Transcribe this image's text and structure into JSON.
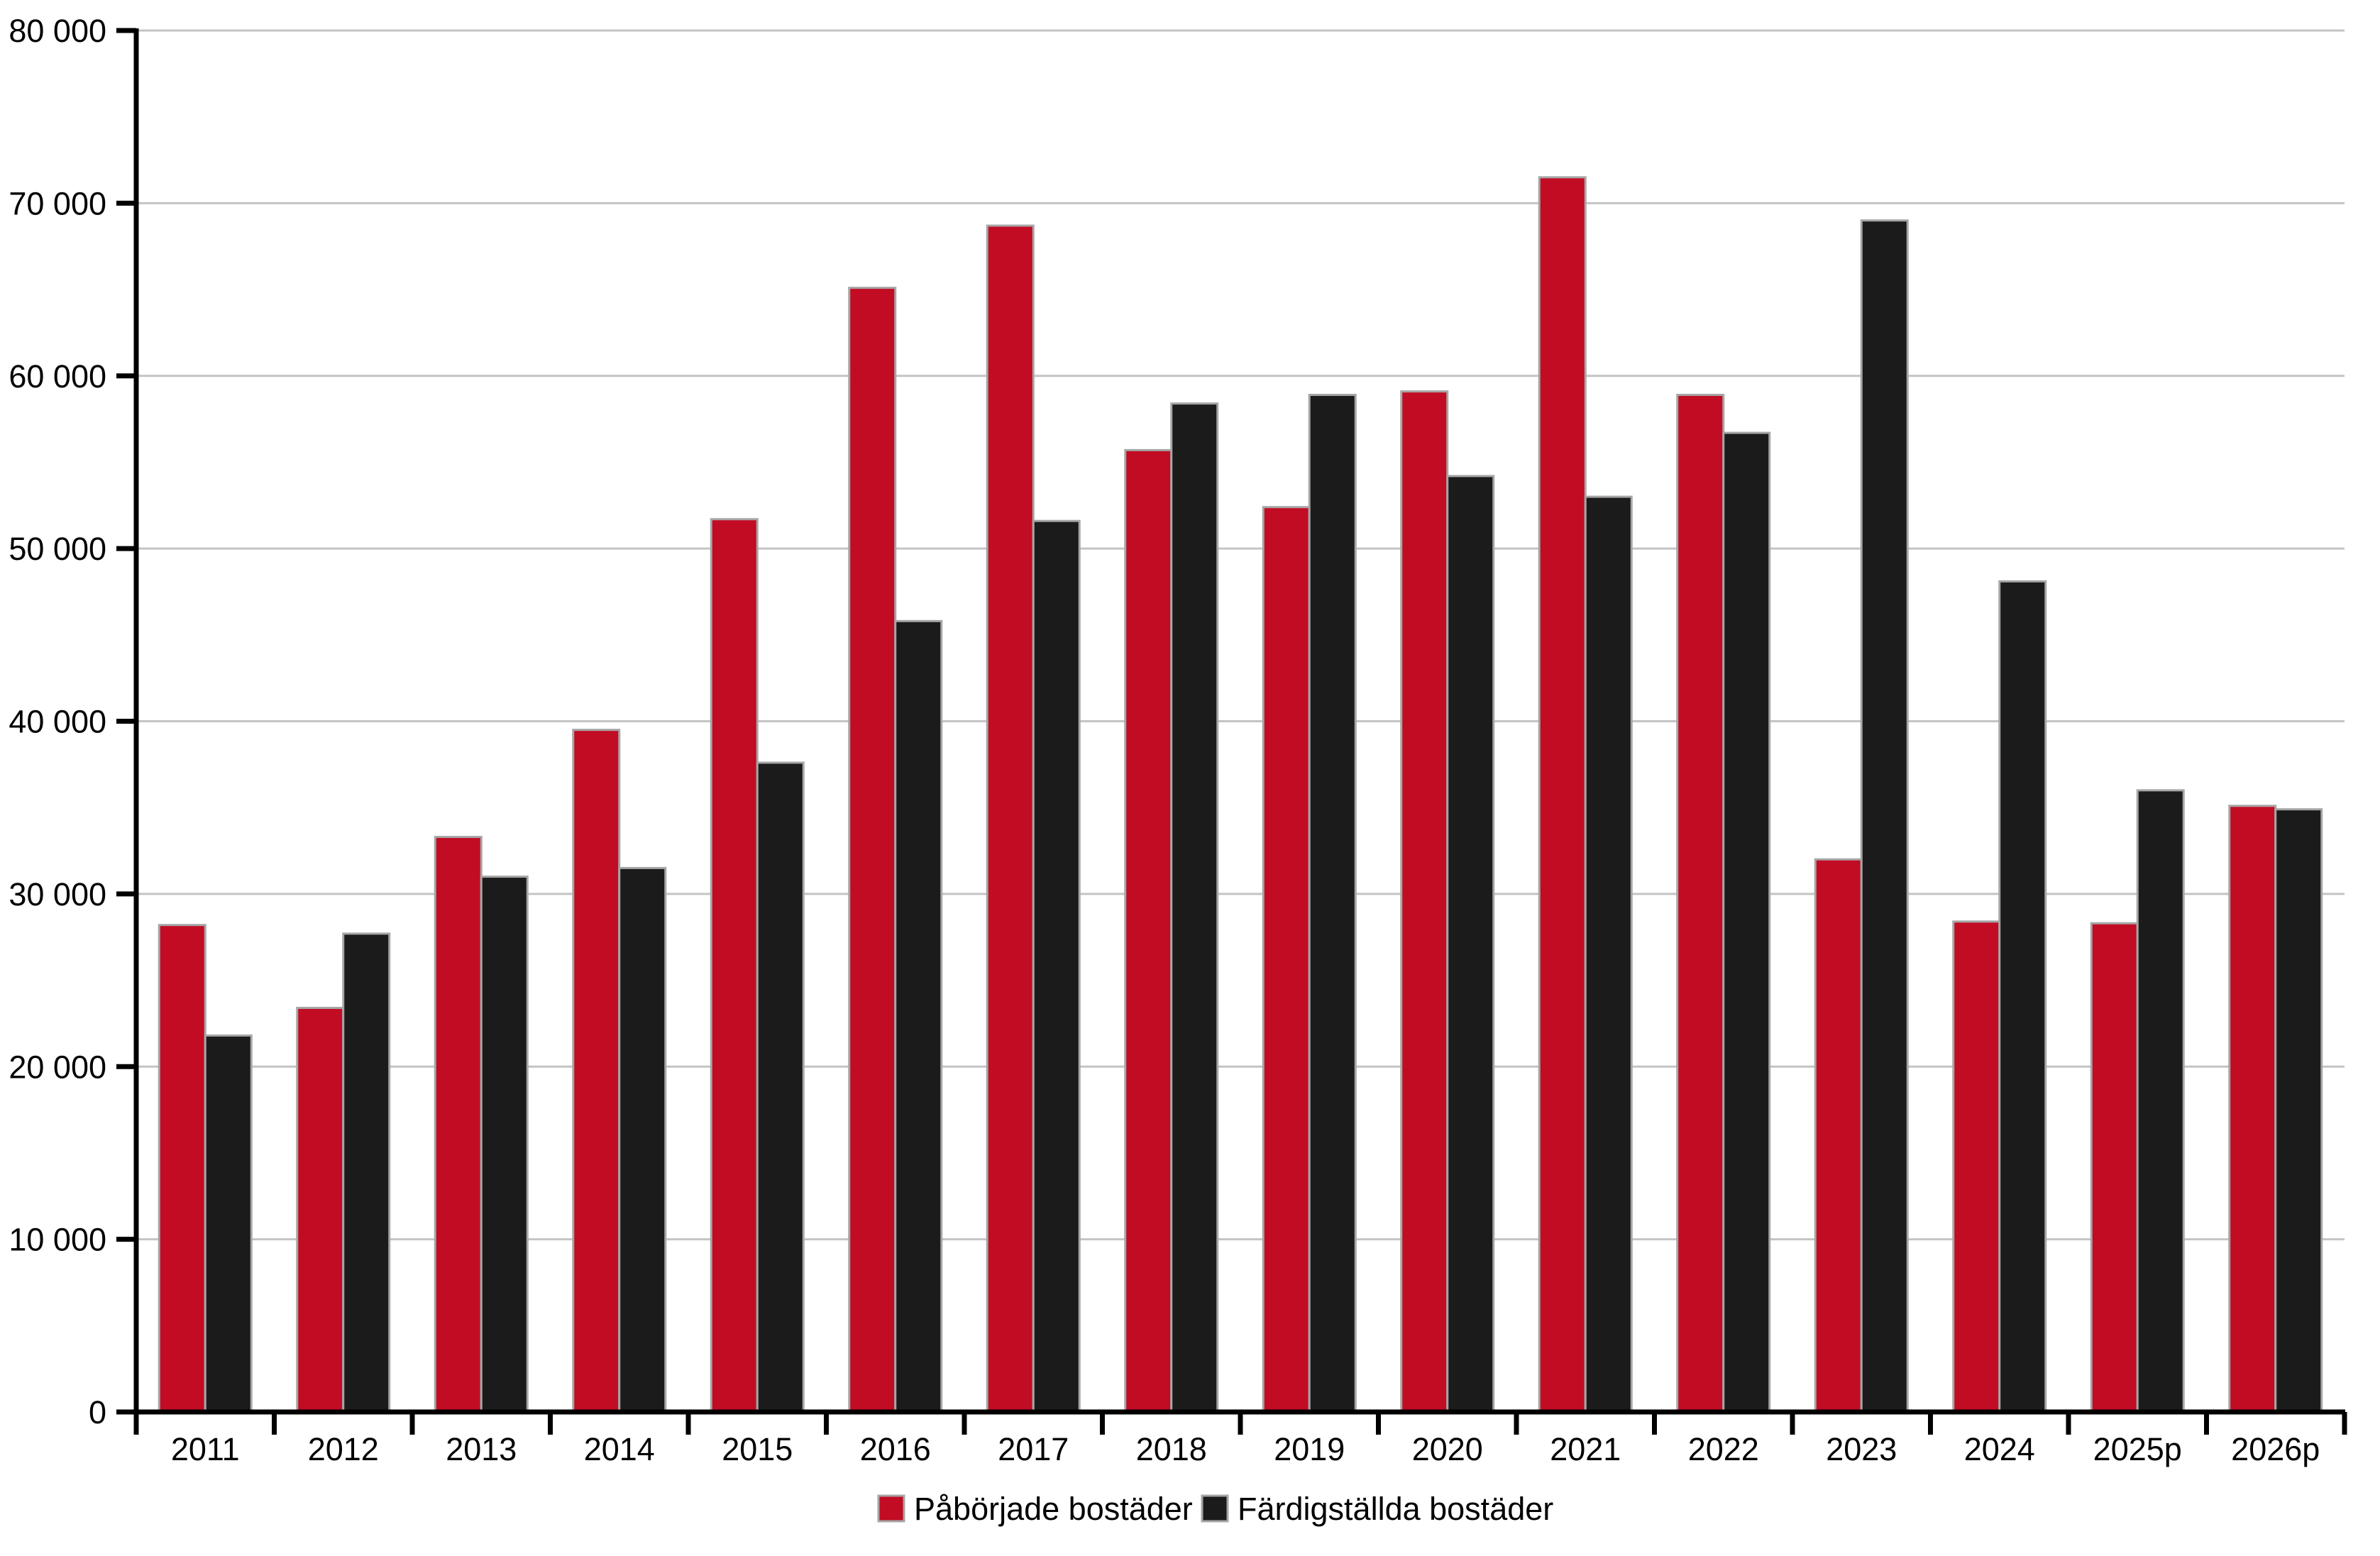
{
  "chart_data": {
    "type": "bar",
    "title": "",
    "categories": [
      "2011",
      "2012",
      "2013",
      "2014",
      "2015",
      "2016",
      "2017",
      "2018",
      "2019",
      "2020",
      "2021",
      "2022",
      "2023",
      "2024",
      "2025p",
      "2026p"
    ],
    "series": [
      {
        "key": "paborjade",
        "name": "Påbörjade bostäder",
        "color": "#C20C24",
        "values": [
          28200,
          23400,
          33300,
          39500,
          51700,
          65100,
          68700,
          55700,
          52400,
          59100,
          71500,
          58900,
          32000,
          28400,
          28300,
          35100
        ]
      },
      {
        "key": "fardigstallda",
        "name": "Färdigställda bostäder",
        "color": "#1B1B1B",
        "values": [
          21800,
          27700,
          31000,
          31500,
          37600,
          45800,
          51600,
          58400,
          58900,
          54200,
          53000,
          56700,
          69000,
          48100,
          36000,
          34900
        ]
      }
    ],
    "ylim": [
      0,
      80000
    ],
    "ytick_step": 10000,
    "ytick_values": [
      0,
      10000,
      20000,
      30000,
      40000,
      50000,
      60000,
      70000,
      80000
    ],
    "ytick_labels": [
      "0",
      "10 000",
      "20 000",
      "30 000",
      "40 000",
      "50 000",
      "60 000",
      "70 000",
      "80 000"
    ],
    "xlabel": "",
    "ylabel": "",
    "grid": true,
    "legend_position": "bottom",
    "background": "#FFFFFF",
    "gridline_color": "#C4C4C4",
    "axis_color": "#000000",
    "bar_border_color": "#A6A6A6"
  }
}
